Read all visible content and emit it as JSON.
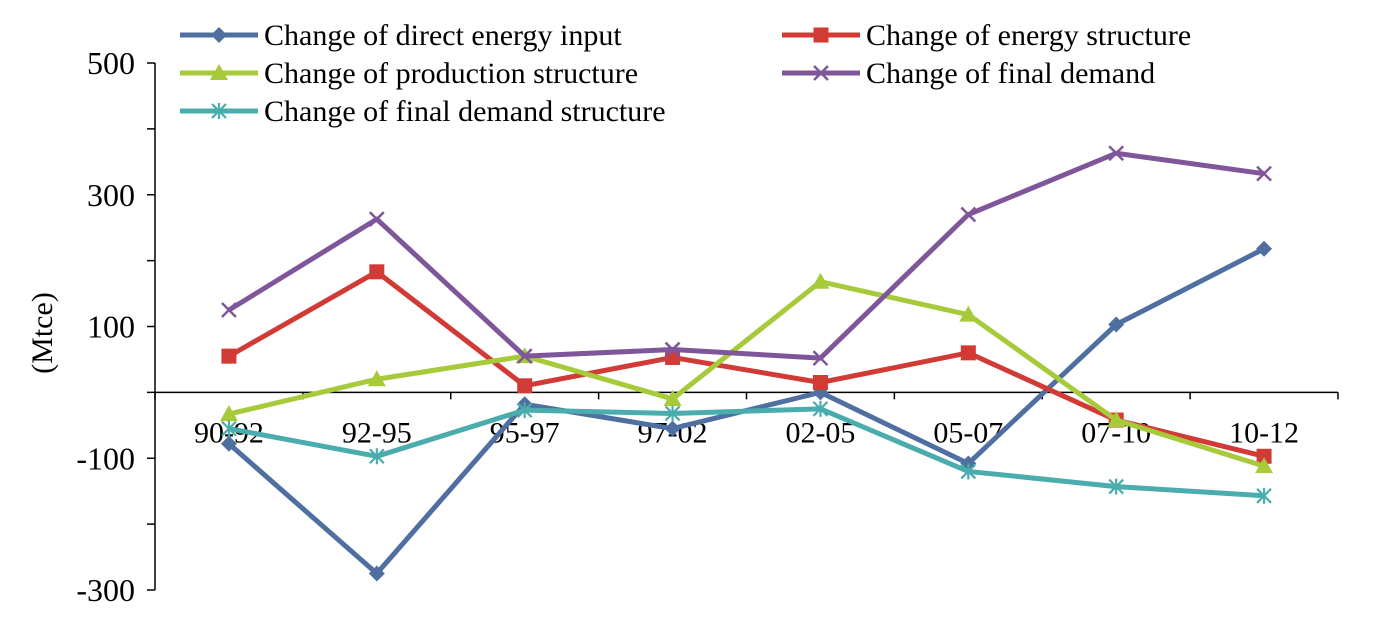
{
  "chart_data": {
    "type": "line",
    "ylabel": "(Mtce)",
    "xlabel": "",
    "categories": [
      "90-92",
      "92-95",
      "95-97",
      "97-02",
      "02-05",
      "05-07",
      "07-10",
      "10-12"
    ],
    "ylim": [
      -300,
      500
    ],
    "yticks": [
      -300,
      -100,
      100,
      300,
      500
    ],
    "y_tick_labels": [
      "-300",
      "-100",
      "100",
      "300",
      "500"
    ],
    "grid": false,
    "legend_position": "top",
    "series": [
      {
        "name": "Change of direct energy input",
        "color": "#4F6FA0",
        "marker": "diamond",
        "values": [
          -78,
          -275,
          -18,
          -55,
          0,
          -108,
          103,
          218
        ]
      },
      {
        "name": "Change of energy structure",
        "color": "#D13A35",
        "marker": "square",
        "values": [
          55,
          183,
          10,
          53,
          15,
          60,
          -42,
          -97
        ]
      },
      {
        "name": "Change of production structure",
        "color": "#A6CA3A",
        "marker": "triangle",
        "values": [
          -33,
          20,
          55,
          -10,
          168,
          118,
          -42,
          -112
        ]
      },
      {
        "name": "Change of final demand",
        "color": "#7F569A",
        "marker": "x",
        "values": [
          125,
          263,
          55,
          65,
          52,
          270,
          363,
          332
        ]
      },
      {
        "name": "Change of final demand structure",
        "color": "#4AACAC",
        "marker": "asterisk",
        "values": [
          -55,
          -97,
          -27,
          -32,
          -25,
          -120,
          -143,
          -157
        ]
      }
    ]
  }
}
